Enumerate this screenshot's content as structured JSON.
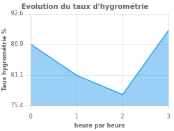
{
  "chart_data": {
    "type": "area",
    "title": "Evolution du taux d'hygrométrie",
    "xlabel": "heure par heure",
    "ylabel": "Taux hygrométrie %",
    "x": [
      0,
      1,
      2,
      3
    ],
    "values": [
      86.9,
      81.1,
      77.5,
      89.5
    ],
    "xlim": [
      0,
      3
    ],
    "ylim": [
      75.4,
      92.6
    ],
    "xticks": [
      0,
      1,
      2,
      3
    ],
    "yticks": [
      75.4,
      81.1,
      86.9,
      92.6
    ],
    "grid": true
  }
}
